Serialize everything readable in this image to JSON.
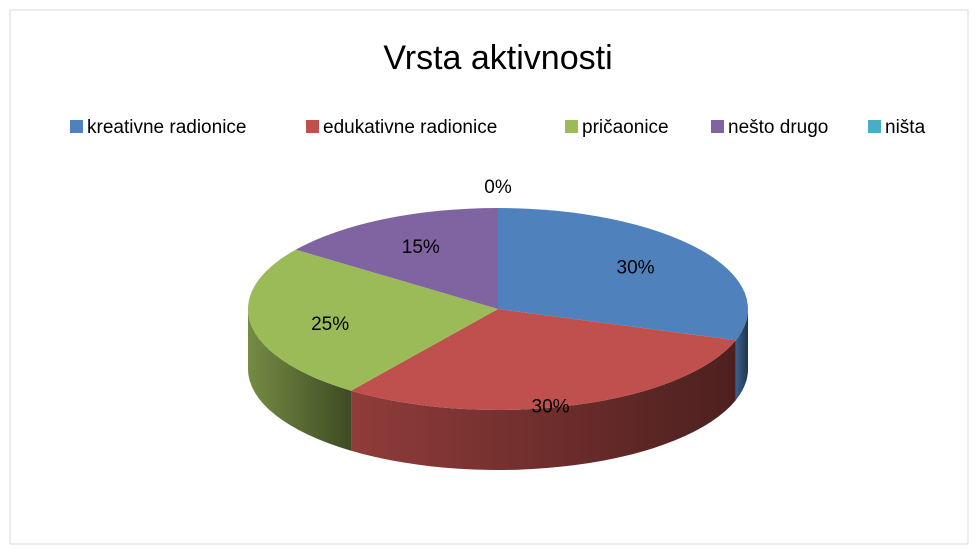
{
  "chart_data": {
    "type": "pie",
    "title": "Vrsta aktivnosti",
    "categories": [
      "kreativne radionice",
      "edukativne radionice",
      "pričaonice",
      "nešto drugo",
      "ništa"
    ],
    "values": [
      30,
      30,
      25,
      15,
      0
    ],
    "value_labels": [
      "30%",
      "30%",
      "25%",
      "15%",
      "0%"
    ],
    "colors": [
      "#4F81BD",
      "#C0504D",
      "#9BBB59",
      "#8064A2",
      "#4BACC6"
    ],
    "legend": "top"
  }
}
